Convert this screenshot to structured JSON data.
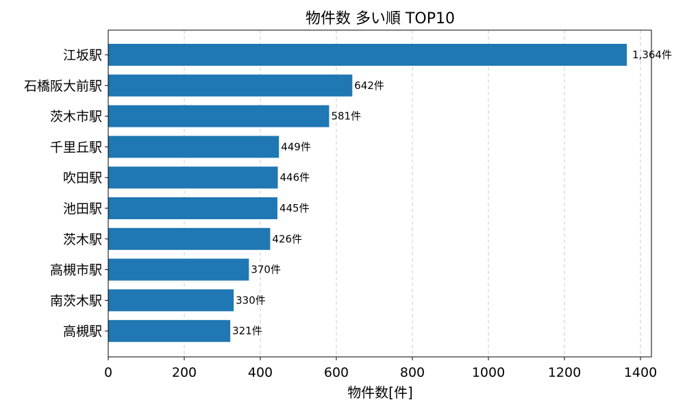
{
  "chart_data": {
    "type": "bar",
    "orientation": "horizontal",
    "title": "物件数 多い順 TOP10",
    "xlabel": "物件数[件]",
    "ylabel": "",
    "categories": [
      "江坂駅",
      "石橋阪大前駅",
      "茨木市駅",
      "千里丘駅",
      "吹田駅",
      "池田駅",
      "茨木駅",
      "高槻市駅",
      "南茨木駅",
      "高槻駅"
    ],
    "values": [
      1364,
      642,
      581,
      449,
      446,
      445,
      426,
      370,
      330,
      321
    ],
    "value_labels": [
      "1,364件",
      "642件",
      "581件",
      "449件",
      "446件",
      "445件",
      "426件",
      "370件",
      "330件",
      "321件"
    ],
    "xticks": [
      0,
      200,
      400,
      600,
      800,
      1000,
      1200,
      1400
    ],
    "xtick_labels": [
      "0",
      "200",
      "400",
      "600",
      "800",
      "1000",
      "1200",
      "1400"
    ],
    "xlim": [
      0,
      1432
    ],
    "grid": "x-dashed",
    "legend": "none",
    "bar_color": "#1f77b4"
  }
}
